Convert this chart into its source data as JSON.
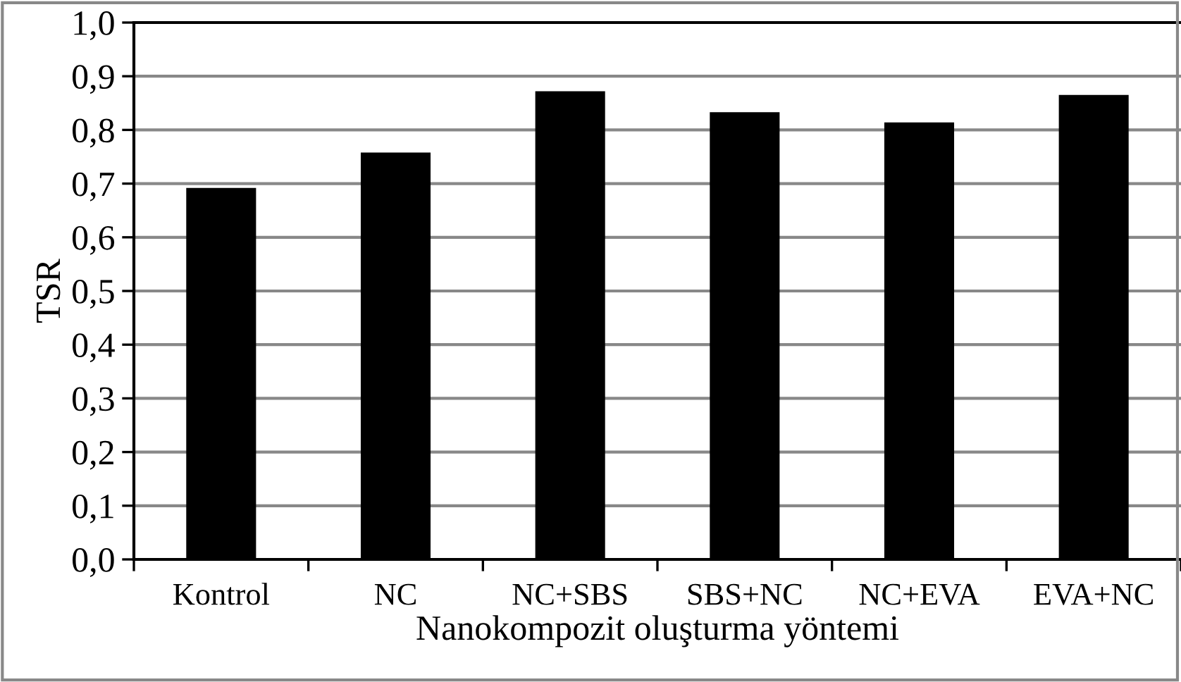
{
  "chart_data": {
    "type": "bar",
    "xlabel": "Nanokompozit oluşturma yöntemi",
    "ylabel": "TSR",
    "categories": [
      "Kontrol",
      "NC",
      "NC+SBS",
      "SBS+NC",
      "NC+EVA",
      "EVA+NC"
    ],
    "values": [
      0.692,
      0.758,
      0.872,
      0.833,
      0.814,
      0.865
    ],
    "color": "#000000",
    "ylim": [
      0,
      1.0
    ],
    "yticks": [
      {
        "value": 0,
        "label": "0,0"
      },
      {
        "value": 0.1,
        "label": "0,1"
      },
      {
        "value": 0.2,
        "label": "0,2"
      },
      {
        "value": 0.3,
        "label": "0,3"
      },
      {
        "value": 0.4,
        "label": "0,4"
      },
      {
        "value": 0.5,
        "label": "0,5"
      },
      {
        "value": 0.6,
        "label": "0,6"
      },
      {
        "value": 0.7,
        "label": "0,7"
      },
      {
        "value": 0.8,
        "label": "0,8"
      },
      {
        "value": 0.9,
        "label": "0,9"
      },
      {
        "value": 1.0,
        "label": "1,0"
      }
    ],
    "grid": "y",
    "legend": false
  }
}
